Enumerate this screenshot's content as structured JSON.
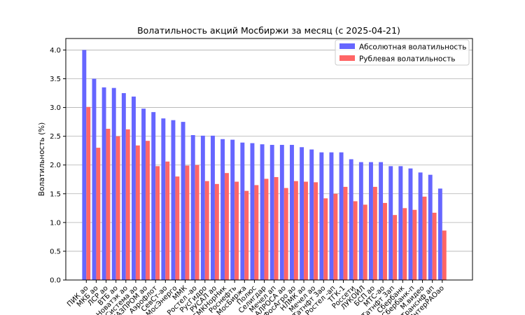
{
  "chart_data": {
    "type": "bar",
    "title": "Волатильность акций Мосбиржи за месяц (с 2025-04-21)",
    "xlabel": "",
    "ylabel": "Волатильность (%)",
    "ylim": [
      0,
      4.2
    ],
    "yticks": [
      "0.0",
      "0.5",
      "1.0",
      "1.5",
      "2.0",
      "2.5",
      "3.0",
      "3.5",
      "4.0"
    ],
    "grid": "horizontal",
    "legend_position": "top-right",
    "categories": [
      "ПИК ао",
      "МКБ ао",
      "ЛСР ао",
      "ВТБ ао",
      "Новатэк ао",
      "Система ао",
      "ГАЗПРОМ ао",
      "Аэрофлот",
      "СевСт-ао",
      "МосЭнерго",
      "ММК",
      "Ростел -ао",
      "РусГидро",
      "РУСАЛ ао",
      "ГМКНорНик",
      "Роснефть",
      "МосБиржа",
      "Полюс",
      "Селигдар",
      "Мечел ап",
      "АЛРОСА ао",
      "ФосАгро ао",
      "НЛМК ао",
      "Мечел ао",
      "Татнфт 3ао",
      "Ростел -ап",
      "ТГК-1",
      "Россети",
      "ЛУКОЙЛ",
      "БСП ао",
      "МТС-ао",
      "Татнфт 3ап",
      "Сбербанк",
      "Сбербанк-п",
      "М.видео",
      "Транснф ап",
      "ИнтерРАОао"
    ],
    "series": [
      {
        "name": "Абсолютная волатильность",
        "color": "#6666ff",
        "values": [
          4.0,
          3.5,
          3.35,
          3.34,
          3.25,
          3.19,
          2.98,
          2.92,
          2.81,
          2.78,
          2.75,
          2.52,
          2.51,
          2.51,
          2.45,
          2.44,
          2.39,
          2.38,
          2.36,
          2.35,
          2.35,
          2.35,
          2.31,
          2.27,
          2.22,
          2.22,
          2.22,
          2.1,
          2.05,
          2.05,
          2.05,
          1.98,
          1.98,
          1.94,
          1.87,
          1.83,
          1.59
        ]
      },
      {
        "name": "Рублевая волатильность",
        "color": "#ff6666",
        "values": [
          3.01,
          2.3,
          2.63,
          2.5,
          2.62,
          2.34,
          2.42,
          1.98,
          2.06,
          1.8,
          1.99,
          2.0,
          1.72,
          1.67,
          1.86,
          1.71,
          1.55,
          1.65,
          1.76,
          1.79,
          1.6,
          1.72,
          1.71,
          1.7,
          1.42,
          1.5,
          1.62,
          1.37,
          1.31,
          1.62,
          1.34,
          1.13,
          1.25,
          1.22,
          1.45,
          1.17,
          0.86
        ]
      }
    ]
  }
}
